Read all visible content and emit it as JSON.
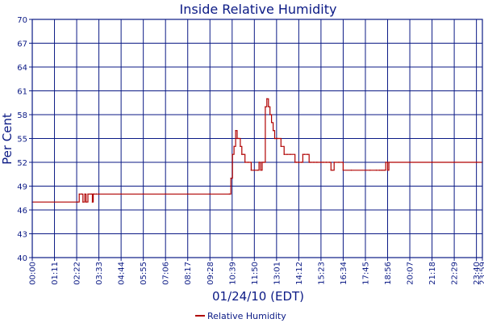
{
  "chart_data": {
    "type": "line",
    "title": "Inside Relative Humidity",
    "xlabel": "01/24/10 (EDT)",
    "ylabel": "Per Cent",
    "ylim": [
      40,
      70
    ],
    "xlim": [
      "00:00",
      "23:59"
    ],
    "y_ticks": [
      "40",
      "43",
      "46",
      "49",
      "52",
      "55",
      "58",
      "61",
      "64",
      "67",
      "70"
    ],
    "x_ticks": [
      "00:00",
      "01:11",
      "02:22",
      "03:33",
      "04:44",
      "05:55",
      "07:06",
      "08:17",
      "09:28",
      "10:39",
      "11:50",
      "13:01",
      "14:12",
      "15:23",
      "16:34",
      "17:45",
      "18:56",
      "20:07",
      "21:18",
      "22:29",
      "23:40",
      "23:59"
    ],
    "grid": true,
    "legend_position": "bottom-center",
    "colors": {
      "line": "#b00000",
      "grid": "#0b1a85",
      "text": "#0b1a85"
    },
    "series": [
      {
        "name": "Relative Humidity",
        "color": "#b00000",
        "x": [
          "00:00",
          "02:25",
          "02:30",
          "02:38",
          "02:42",
          "02:48",
          "02:52",
          "02:58",
          "03:05",
          "03:10",
          "03:12",
          "03:15",
          "03:18",
          "03:25",
          "03:33",
          "04:44",
          "05:55",
          "07:06",
          "08:17",
          "09:28",
          "10:30",
          "10:35",
          "10:40",
          "10:45",
          "10:50",
          "10:55",
          "11:00",
          "11:05",
          "11:10",
          "11:15",
          "11:20",
          "11:30",
          "11:40",
          "11:50",
          "12:00",
          "12:05",
          "12:10",
          "12:15",
          "12:20",
          "12:25",
          "12:30",
          "12:35",
          "12:40",
          "12:45",
          "12:50",
          "12:55",
          "13:00",
          "13:01",
          "13:05",
          "13:15",
          "13:25",
          "13:35",
          "13:45",
          "14:00",
          "14:05",
          "14:12",
          "14:20",
          "14:25",
          "14:30",
          "14:40",
          "14:45",
          "14:50",
          "15:00",
          "15:10",
          "15:23",
          "15:30",
          "15:40",
          "15:50",
          "15:55",
          "16:00",
          "16:05",
          "16:20",
          "16:34",
          "17:00",
          "17:45",
          "18:00",
          "18:20",
          "18:30",
          "18:35",
          "18:40",
          "18:45",
          "18:50",
          "18:56",
          "19:00",
          "20:07",
          "21:18",
          "22:29",
          "23:40",
          "23:59"
        ],
        "y": [
          47,
          47,
          48,
          48,
          47,
          48,
          47,
          48,
          48,
          48,
          47,
          48,
          48,
          48,
          48,
          48,
          48,
          48,
          48,
          48,
          48,
          50,
          53,
          54,
          56,
          55,
          55,
          54,
          53,
          53,
          52,
          52,
          51,
          51,
          51,
          52,
          51,
          52,
          52,
          59,
          60,
          59,
          58,
          57,
          56,
          55,
          55,
          55,
          55,
          54,
          53,
          53,
          53,
          52,
          52,
          52,
          52,
          53,
          53,
          53,
          52,
          52,
          52,
          52,
          52,
          52,
          52,
          52,
          51,
          51,
          52,
          52,
          51,
          51,
          51,
          51,
          51,
          51,
          51,
          51,
          51,
          52,
          51,
          52,
          52,
          52,
          52,
          52,
          52
        ]
      }
    ]
  }
}
